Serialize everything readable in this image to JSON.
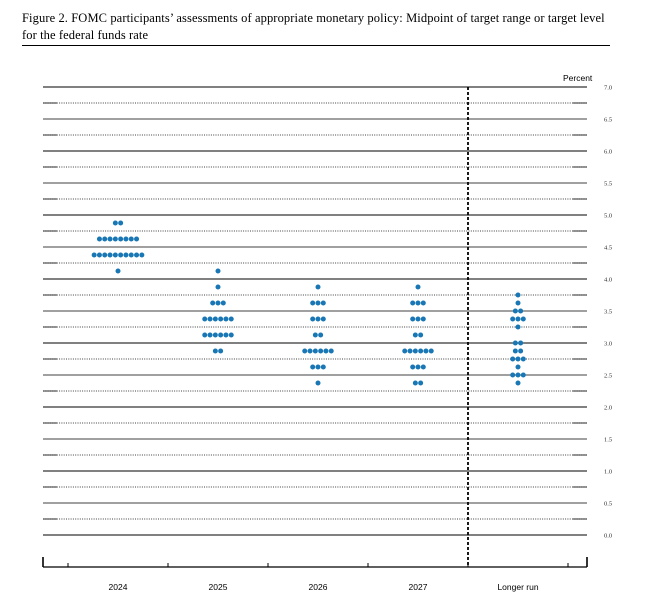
{
  "figure": {
    "title": "Figure 2.  FOMC participants’ assessments of appropriate monetary policy: Midpoint of target range or target level for the federal funds rate"
  },
  "chart_data": {
    "type": "scatter",
    "style": "dot-plot",
    "unit": "Percent",
    "ylim": [
      0.0,
      7.0
    ],
    "y_ticks": [
      "0.0",
      "0.5",
      "1.0",
      "1.5",
      "2.0",
      "2.5",
      "3.0",
      "3.5",
      "4.0",
      "4.5",
      "5.0",
      "5.5",
      "6.0",
      "6.5",
      "7.0"
    ],
    "categories": [
      "2024",
      "2025",
      "2026",
      "2027",
      "Longer run"
    ],
    "dot_color": "#1a77b5",
    "separator_after_category": "2027",
    "projections": [
      {
        "category": "2024",
        "rates": [
          {
            "rate": 4.875,
            "count": 2
          },
          {
            "rate": 4.625,
            "count": 8
          },
          {
            "rate": 4.375,
            "count": 10
          },
          {
            "rate": 4.125,
            "count": 1
          }
        ]
      },
      {
        "category": "2025",
        "rates": [
          {
            "rate": 4.125,
            "count": 1
          },
          {
            "rate": 3.875,
            "count": 1
          },
          {
            "rate": 3.625,
            "count": 3
          },
          {
            "rate": 3.375,
            "count": 6
          },
          {
            "rate": 3.125,
            "count": 6
          },
          {
            "rate": 2.875,
            "count": 2
          }
        ]
      },
      {
        "category": "2026",
        "rates": [
          {
            "rate": 3.875,
            "count": 1
          },
          {
            "rate": 3.625,
            "count": 3
          },
          {
            "rate": 3.375,
            "count": 3
          },
          {
            "rate": 3.125,
            "count": 2
          },
          {
            "rate": 2.875,
            "count": 6
          },
          {
            "rate": 2.625,
            "count": 3
          },
          {
            "rate": 2.375,
            "count": 1
          }
        ]
      },
      {
        "category": "2027",
        "rates": [
          {
            "rate": 3.875,
            "count": 1
          },
          {
            "rate": 3.625,
            "count": 3
          },
          {
            "rate": 3.375,
            "count": 3
          },
          {
            "rate": 3.125,
            "count": 2
          },
          {
            "rate": 2.875,
            "count": 6
          },
          {
            "rate": 2.625,
            "count": 3
          },
          {
            "rate": 2.375,
            "count": 2
          }
        ]
      },
      {
        "category": "Longer run",
        "rates": [
          {
            "rate": 3.75,
            "count": 1
          },
          {
            "rate": 3.625,
            "count": 1
          },
          {
            "rate": 3.5,
            "count": 2
          },
          {
            "rate": 3.375,
            "count": 3
          },
          {
            "rate": 3.25,
            "count": 1
          },
          {
            "rate": 3.0,
            "count": 2
          },
          {
            "rate": 2.875,
            "count": 2
          },
          {
            "rate": 2.75,
            "count": 3
          },
          {
            "rate": 2.625,
            "count": 1
          },
          {
            "rate": 2.5,
            "count": 3
          },
          {
            "rate": 2.375,
            "count": 1
          }
        ]
      }
    ]
  }
}
